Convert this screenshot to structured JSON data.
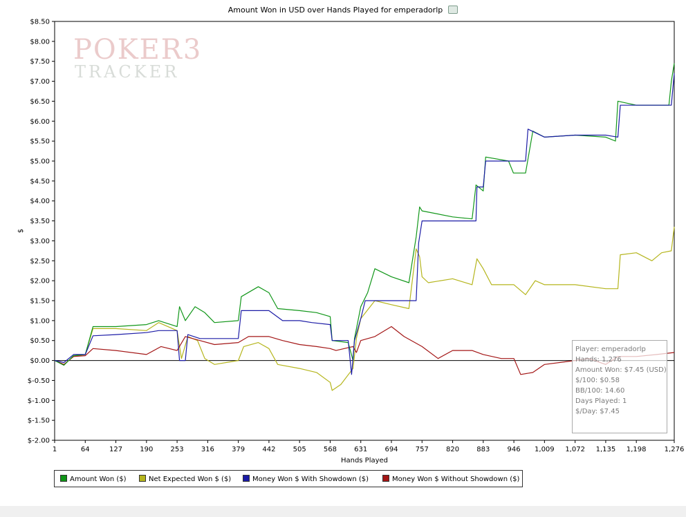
{
  "page": {
    "title": "Amount Won in USD over Hands Played for emperadorlp",
    "title_icon": "poker-tracker-icon"
  },
  "watermark": {
    "line1": "POKER3",
    "line2": "TRACKER",
    "icon": "pokertracker-logo"
  },
  "tooltip": {
    "lines": [
      "Player: emperadorlp",
      "Hands: 1,276",
      "Amount Won: $7.45 (USD)",
      "$/100: $0.58",
      "BB/100: 14.60",
      "Days Played: 1",
      "$/Day: $7.45"
    ]
  },
  "chart_data": {
    "type": "line",
    "xlabel": "Hands Played",
    "ylabel": "$",
    "xlim": [
      1,
      1276
    ],
    "ylim": [
      -2,
      8.5
    ],
    "x_ticks": [
      1,
      64,
      127,
      190,
      253,
      316,
      379,
      442,
      505,
      568,
      631,
      694,
      757,
      820,
      883,
      946,
      1009,
      1072,
      1135,
      1198,
      1276
    ],
    "x_tick_labels": [
      "1",
      "64",
      "127",
      "190",
      "253",
      "316",
      "379",
      "442",
      "505",
      "568",
      "631",
      "694",
      "757",
      "820",
      "883",
      "946",
      "1,009",
      "1,072",
      "1,135",
      "1,198",
      "1,276"
    ],
    "y_ticks": [
      8.5,
      8,
      7.5,
      7,
      6.5,
      6,
      5.5,
      5,
      4.5,
      4,
      3.5,
      3,
      2.5,
      2,
      1.5,
      1,
      0.5,
      0,
      -0.5,
      -1,
      -1.5,
      -2
    ],
    "y_tick_labels": [
      "$8.50",
      "$8.00",
      "$7.50",
      "$7.00",
      "$6.50",
      "$6.00",
      "$5.50",
      "$5.00",
      "$4.50",
      "$4.00",
      "$3.50",
      "$3.00",
      "$2.50",
      "$2.00",
      "$1.50",
      "$1.00",
      "$0.50",
      "$0.00",
      "$-0.50",
      "$-1.00",
      "$-1.50",
      "$-2.00"
    ],
    "legend_position": "bottom",
    "series": [
      {
        "name": "Amount Won ($)",
        "color": "#109618",
        "points": [
          [
            1,
            0
          ],
          [
            20,
            -0.12
          ],
          [
            40,
            0.12
          ],
          [
            64,
            0.15
          ],
          [
            80,
            0.85
          ],
          [
            127,
            0.85
          ],
          [
            190,
            0.9
          ],
          [
            215,
            1.0
          ],
          [
            253,
            0.85
          ],
          [
            258,
            1.35
          ],
          [
            270,
            1.0
          ],
          [
            290,
            1.35
          ],
          [
            310,
            1.2
          ],
          [
            330,
            0.95
          ],
          [
            379,
            1.0
          ],
          [
            385,
            1.6
          ],
          [
            420,
            1.85
          ],
          [
            442,
            1.7
          ],
          [
            460,
            1.3
          ],
          [
            505,
            1.25
          ],
          [
            540,
            1.2
          ],
          [
            568,
            1.1
          ],
          [
            572,
            0.5
          ],
          [
            605,
            0.45
          ],
          [
            615,
            0.0
          ],
          [
            618,
            0.55
          ],
          [
            631,
            1.35
          ],
          [
            645,
            1.7
          ],
          [
            660,
            2.3
          ],
          [
            694,
            2.1
          ],
          [
            730,
            1.95
          ],
          [
            745,
            3.1
          ],
          [
            752,
            3.85
          ],
          [
            757,
            3.75
          ],
          [
            820,
            3.6
          ],
          [
            860,
            3.55
          ],
          [
            868,
            4.4
          ],
          [
            883,
            4.25
          ],
          [
            888,
            5.1
          ],
          [
            935,
            5.0
          ],
          [
            945,
            4.7
          ],
          [
            970,
            4.7
          ],
          [
            985,
            5.75
          ],
          [
            1009,
            5.6
          ],
          [
            1072,
            5.65
          ],
          [
            1135,
            5.6
          ],
          [
            1155,
            5.5
          ],
          [
            1160,
            6.5
          ],
          [
            1198,
            6.4
          ],
          [
            1230,
            6.4
          ],
          [
            1265,
            6.4
          ],
          [
            1270,
            7.0
          ],
          [
            1276,
            7.45
          ]
        ]
      },
      {
        "name": "Net Expected Won $ ($)",
        "color": "#b5b51c",
        "points": [
          [
            1,
            0
          ],
          [
            20,
            -0.1
          ],
          [
            40,
            0.1
          ],
          [
            64,
            0.15
          ],
          [
            80,
            0.8
          ],
          [
            127,
            0.8
          ],
          [
            190,
            0.75
          ],
          [
            215,
            0.95
          ],
          [
            253,
            0.75
          ],
          [
            262,
            0.05
          ],
          [
            275,
            0.6
          ],
          [
            295,
            0.5
          ],
          [
            310,
            0.05
          ],
          [
            330,
            -0.1
          ],
          [
            379,
            0.0
          ],
          [
            390,
            0.35
          ],
          [
            420,
            0.45
          ],
          [
            442,
            0.3
          ],
          [
            460,
            -0.1
          ],
          [
            505,
            -0.2
          ],
          [
            540,
            -0.3
          ],
          [
            568,
            -0.55
          ],
          [
            572,
            -0.75
          ],
          [
            590,
            -0.6
          ],
          [
            615,
            -0.2
          ],
          [
            622,
            0.55
          ],
          [
            631,
            1.05
          ],
          [
            660,
            1.5
          ],
          [
            694,
            1.4
          ],
          [
            730,
            1.3
          ],
          [
            745,
            2.8
          ],
          [
            752,
            2.6
          ],
          [
            757,
            2.1
          ],
          [
            770,
            1.95
          ],
          [
            820,
            2.05
          ],
          [
            860,
            1.9
          ],
          [
            870,
            2.55
          ],
          [
            883,
            2.3
          ],
          [
            900,
            1.9
          ],
          [
            946,
            1.9
          ],
          [
            970,
            1.65
          ],
          [
            990,
            2.0
          ],
          [
            1009,
            1.9
          ],
          [
            1072,
            1.9
          ],
          [
            1135,
            1.8
          ],
          [
            1160,
            1.8
          ],
          [
            1165,
            2.65
          ],
          [
            1198,
            2.7
          ],
          [
            1230,
            2.5
          ],
          [
            1250,
            2.7
          ],
          [
            1270,
            2.75
          ],
          [
            1276,
            3.35
          ]
        ]
      },
      {
        "name": "Money Won $ With Showdown ($)",
        "color": "#1b1ba6",
        "points": [
          [
            1,
            0
          ],
          [
            20,
            -0.05
          ],
          [
            40,
            0.15
          ],
          [
            64,
            0.15
          ],
          [
            80,
            0.62
          ],
          [
            127,
            0.65
          ],
          [
            190,
            0.7
          ],
          [
            215,
            0.75
          ],
          [
            253,
            0.75
          ],
          [
            258,
            0.0
          ],
          [
            270,
            0.0
          ],
          [
            275,
            0.65
          ],
          [
            300,
            0.55
          ],
          [
            316,
            0.55
          ],
          [
            379,
            0.55
          ],
          [
            385,
            1.25
          ],
          [
            442,
            1.25
          ],
          [
            470,
            1.0
          ],
          [
            505,
            1.0
          ],
          [
            530,
            0.95
          ],
          [
            568,
            0.9
          ],
          [
            572,
            0.5
          ],
          [
            605,
            0.5
          ],
          [
            612,
            -0.35
          ],
          [
            618,
            0.5
          ],
          [
            631,
            1.05
          ],
          [
            640,
            1.5
          ],
          [
            694,
            1.5
          ],
          [
            745,
            1.5
          ],
          [
            750,
            2.95
          ],
          [
            757,
            3.5
          ],
          [
            820,
            3.5
          ],
          [
            868,
            3.5
          ],
          [
            870,
            4.35
          ],
          [
            883,
            4.35
          ],
          [
            888,
            5.0
          ],
          [
            946,
            5.0
          ],
          [
            970,
            5.0
          ],
          [
            975,
            5.8
          ],
          [
            1009,
            5.6
          ],
          [
            1072,
            5.65
          ],
          [
            1135,
            5.65
          ],
          [
            1160,
            5.6
          ],
          [
            1165,
            6.4
          ],
          [
            1198,
            6.4
          ],
          [
            1230,
            6.4
          ],
          [
            1270,
            6.4
          ],
          [
            1276,
            7.2
          ]
        ]
      },
      {
        "name": "Money Won $ Without Showdown ($)",
        "color": "#a31515",
        "points": [
          [
            1,
            0
          ],
          [
            20,
            -0.1
          ],
          [
            40,
            0.1
          ],
          [
            64,
            0.12
          ],
          [
            80,
            0.3
          ],
          [
            127,
            0.25
          ],
          [
            190,
            0.15
          ],
          [
            220,
            0.35
          ],
          [
            253,
            0.25
          ],
          [
            270,
            0.6
          ],
          [
            300,
            0.5
          ],
          [
            330,
            0.4
          ],
          [
            379,
            0.45
          ],
          [
            400,
            0.6
          ],
          [
            442,
            0.6
          ],
          [
            470,
            0.5
          ],
          [
            505,
            0.4
          ],
          [
            540,
            0.35
          ],
          [
            568,
            0.3
          ],
          [
            580,
            0.25
          ],
          [
            615,
            0.35
          ],
          [
            622,
            0.2
          ],
          [
            631,
            0.5
          ],
          [
            660,
            0.6
          ],
          [
            694,
            0.85
          ],
          [
            720,
            0.6
          ],
          [
            757,
            0.35
          ],
          [
            790,
            0.05
          ],
          [
            820,
            0.25
          ],
          [
            860,
            0.25
          ],
          [
            883,
            0.15
          ],
          [
            920,
            0.05
          ],
          [
            946,
            0.05
          ],
          [
            960,
            -0.35
          ],
          [
            985,
            -0.3
          ],
          [
            1009,
            -0.1
          ],
          [
            1072,
            0.0
          ],
          [
            1100,
            0.05
          ],
          [
            1135,
            -0.1
          ],
          [
            1160,
            0.1
          ],
          [
            1198,
            0.1
          ],
          [
            1240,
            0.15
          ],
          [
            1276,
            0.2
          ]
        ]
      }
    ]
  }
}
